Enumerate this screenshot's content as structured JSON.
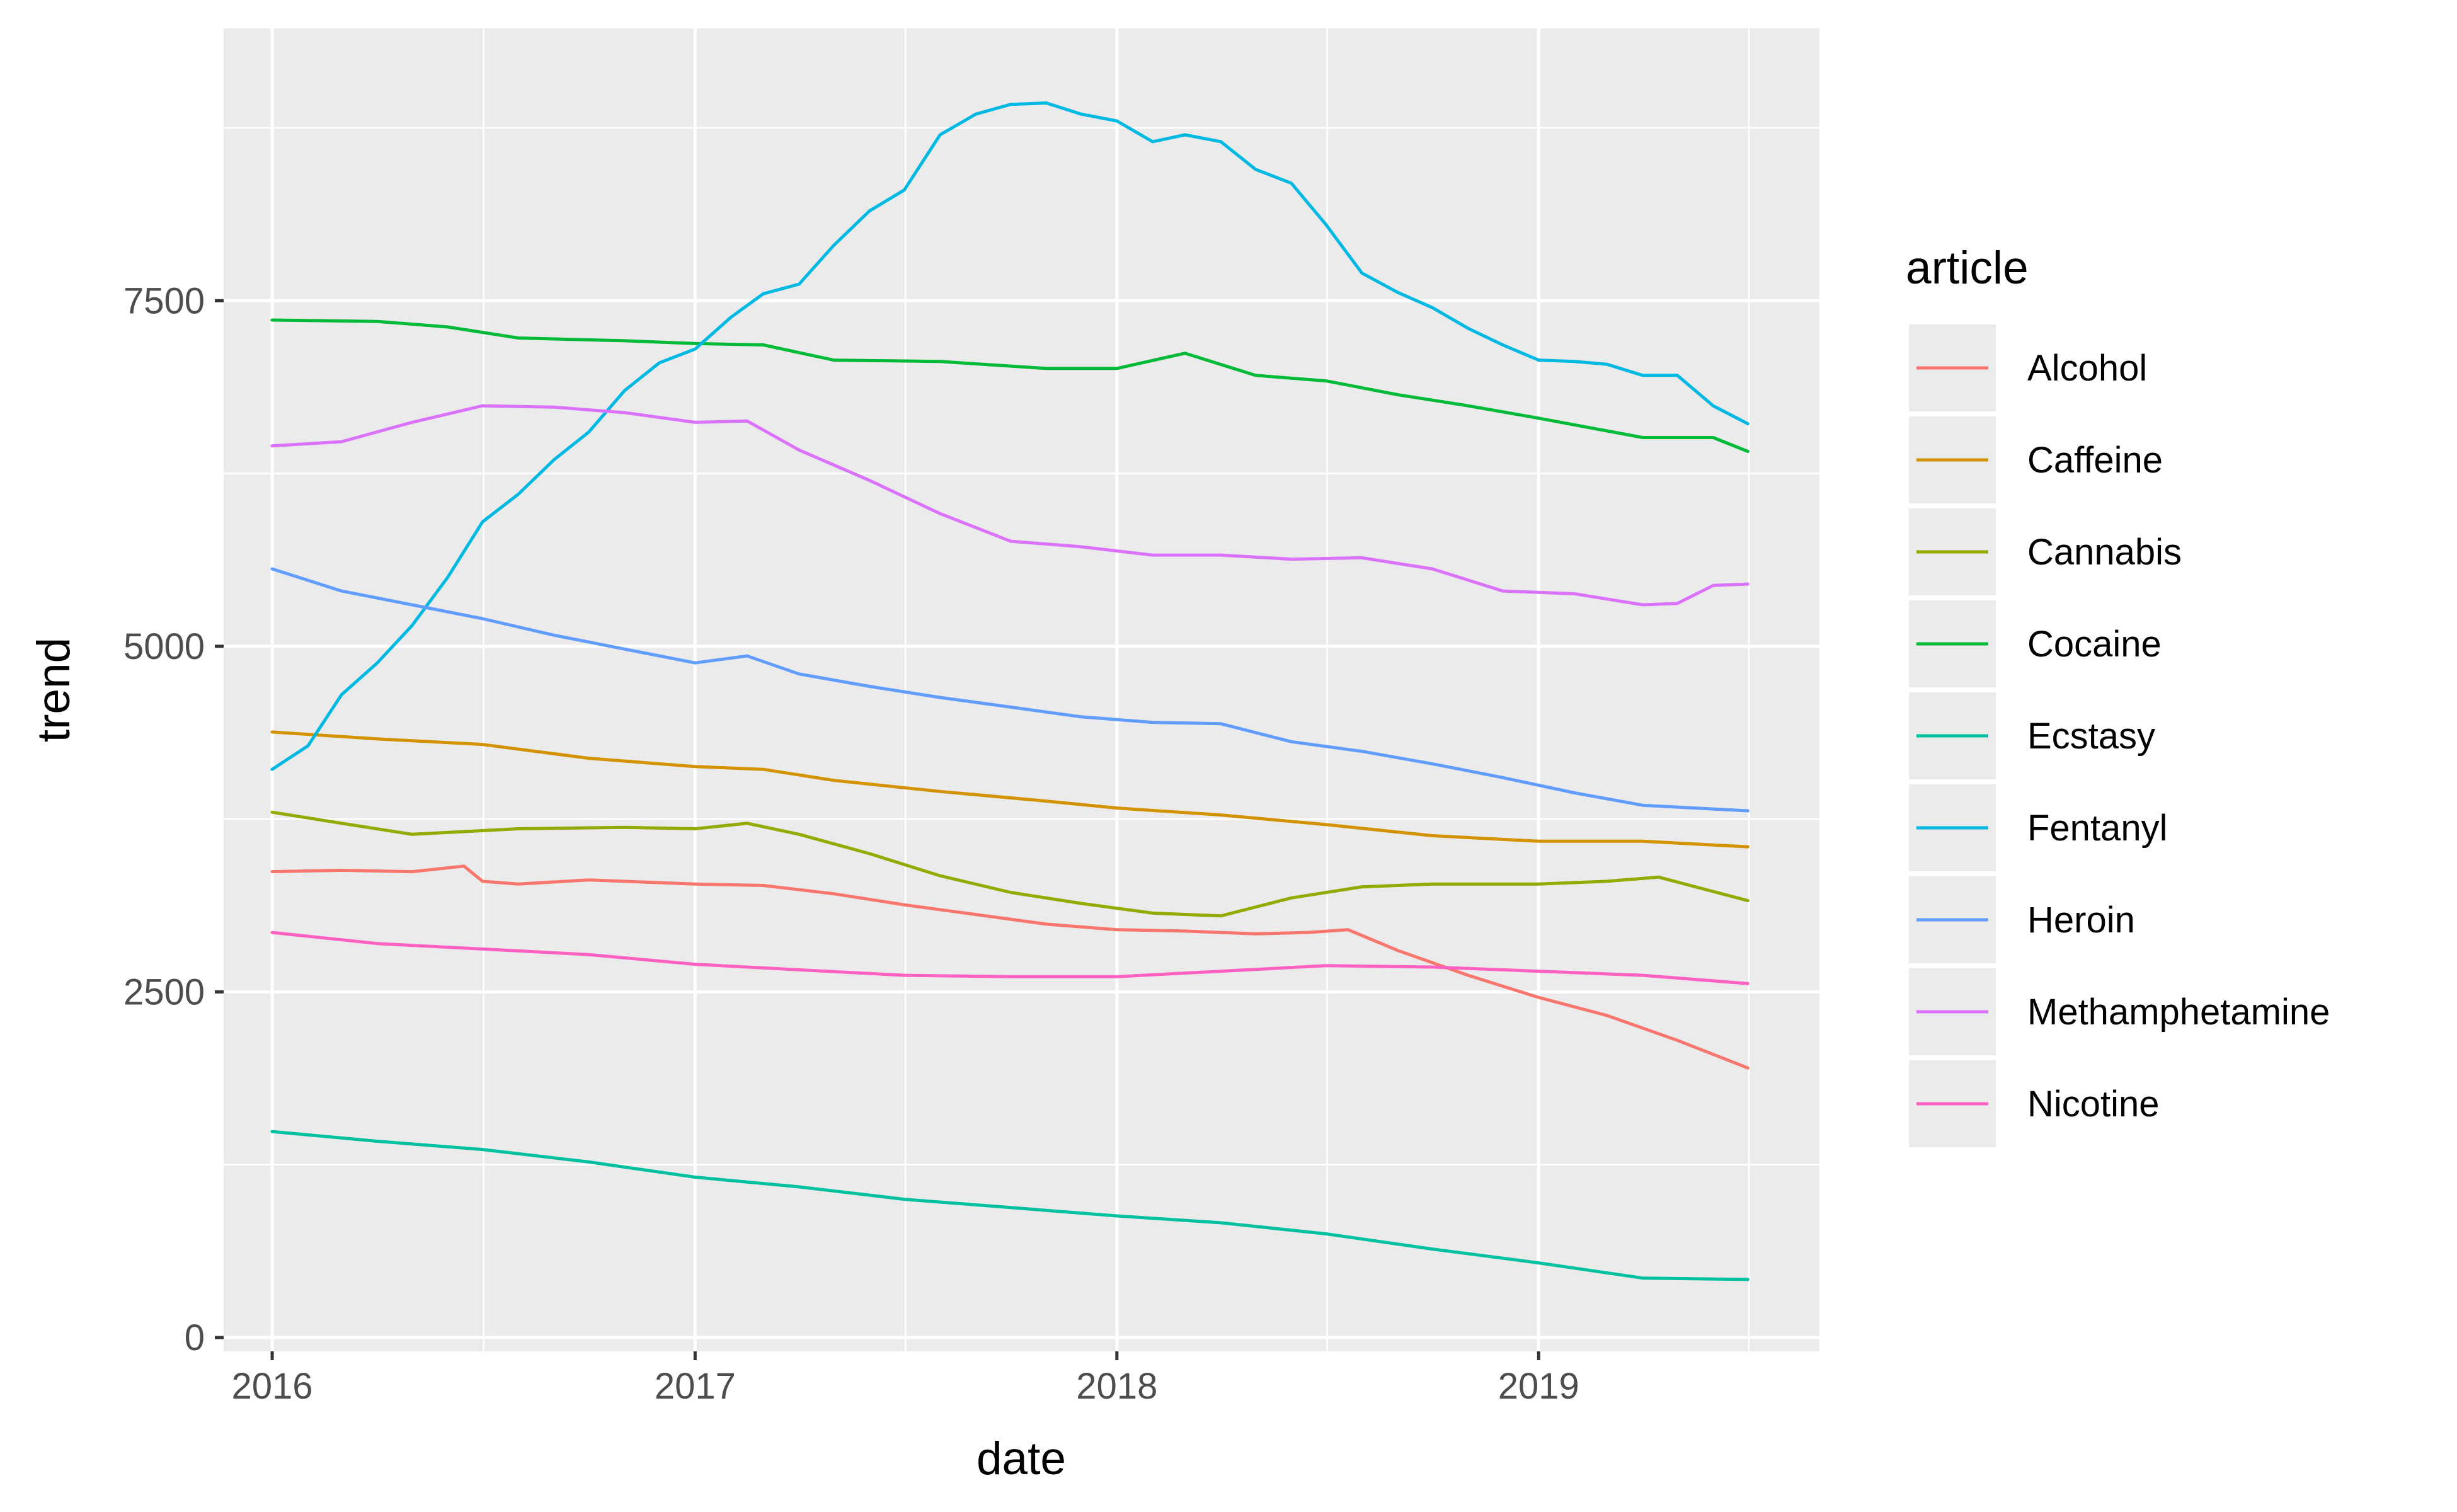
{
  "chart_data": {
    "type": "line",
    "xlabel": "date",
    "ylabel": "trend",
    "x_ticks": [
      "2016",
      "2017",
      "2018",
      "2019"
    ],
    "y_ticks": [
      0,
      2500,
      5000,
      7500
    ],
    "xlim": [
      "2015-11-20",
      "2019-09-01"
    ],
    "ylim": [
      -100,
      9470
    ],
    "grid": true,
    "legend_title": "article",
    "legend_position": "right",
    "series": [
      {
        "name": "Alcohol",
        "color": "#F8766D",
        "points": [
          [
            "2016-01-01",
            3370
          ],
          [
            "2016-03-01",
            3380
          ],
          [
            "2016-05-01",
            3370
          ],
          [
            "2016-06-15",
            3410
          ],
          [
            "2016-07-01",
            3300
          ],
          [
            "2016-08-01",
            3280
          ],
          [
            "2016-10-01",
            3310
          ],
          [
            "2017-01-01",
            3280
          ],
          [
            "2017-03-01",
            3270
          ],
          [
            "2017-05-01",
            3210
          ],
          [
            "2017-07-01",
            3130
          ],
          [
            "2017-09-01",
            3060
          ],
          [
            "2017-11-01",
            2990
          ],
          [
            "2018-01-01",
            2950
          ],
          [
            "2018-03-01",
            2940
          ],
          [
            "2018-05-01",
            2920
          ],
          [
            "2018-06-15",
            2930
          ],
          [
            "2018-07-20",
            2950
          ],
          [
            "2018-09-01",
            2800
          ],
          [
            "2018-11-01",
            2620
          ],
          [
            "2019-01-01",
            2460
          ],
          [
            "2019-03-01",
            2330
          ],
          [
            "2019-05-01",
            2150
          ],
          [
            "2019-07-01",
            1950
          ]
        ]
      },
      {
        "name": "Caffeine",
        "color": "#D39200",
        "points": [
          [
            "2016-01-01",
            4380
          ],
          [
            "2016-04-01",
            4330
          ],
          [
            "2016-07-01",
            4290
          ],
          [
            "2016-10-01",
            4190
          ],
          [
            "2017-01-01",
            4130
          ],
          [
            "2017-03-01",
            4110
          ],
          [
            "2017-05-01",
            4030
          ],
          [
            "2017-08-01",
            3950
          ],
          [
            "2017-11-01",
            3880
          ],
          [
            "2018-01-01",
            3830
          ],
          [
            "2018-04-01",
            3780
          ],
          [
            "2018-07-01",
            3710
          ],
          [
            "2018-10-01",
            3630
          ],
          [
            "2019-01-01",
            3590
          ],
          [
            "2019-04-01",
            3590
          ],
          [
            "2019-07-01",
            3550
          ]
        ]
      },
      {
        "name": "Cannabis",
        "color": "#93AA00",
        "points": [
          [
            "2016-01-01",
            3800
          ],
          [
            "2016-03-01",
            3720
          ],
          [
            "2016-05-01",
            3640
          ],
          [
            "2016-08-01",
            3680
          ],
          [
            "2016-11-01",
            3690
          ],
          [
            "2017-01-01",
            3680
          ],
          [
            "2017-02-15",
            3720
          ],
          [
            "2017-04-01",
            3640
          ],
          [
            "2017-06-01",
            3500
          ],
          [
            "2017-08-01",
            3340
          ],
          [
            "2017-10-01",
            3220
          ],
          [
            "2017-12-01",
            3140
          ],
          [
            "2018-02-01",
            3070
          ],
          [
            "2018-04-01",
            3050
          ],
          [
            "2018-06-01",
            3180
          ],
          [
            "2018-08-01",
            3260
          ],
          [
            "2018-10-01",
            3280
          ],
          [
            "2019-01-01",
            3280
          ],
          [
            "2019-03-01",
            3300
          ],
          [
            "2019-04-15",
            3330
          ],
          [
            "2019-07-01",
            3160
          ]
        ]
      },
      {
        "name": "Cocaine",
        "color": "#00BA38",
        "points": [
          [
            "2016-01-01",
            7360
          ],
          [
            "2016-04-01",
            7350
          ],
          [
            "2016-06-01",
            7310
          ],
          [
            "2016-08-01",
            7230
          ],
          [
            "2016-11-01",
            7210
          ],
          [
            "2017-01-01",
            7190
          ],
          [
            "2017-03-01",
            7180
          ],
          [
            "2017-05-01",
            7070
          ],
          [
            "2017-08-01",
            7060
          ],
          [
            "2017-11-01",
            7010
          ],
          [
            "2018-01-01",
            7010
          ],
          [
            "2018-03-01",
            7120
          ],
          [
            "2018-05-01",
            6960
          ],
          [
            "2018-07-01",
            6920
          ],
          [
            "2018-09-01",
            6820
          ],
          [
            "2018-11-01",
            6740
          ],
          [
            "2019-01-01",
            6650
          ],
          [
            "2019-04-01",
            6510
          ],
          [
            "2019-06-01",
            6510
          ],
          [
            "2019-07-01",
            6410
          ]
        ]
      },
      {
        "name": "Ecstasy",
        "color": "#00C19F",
        "points": [
          [
            "2016-01-01",
            1490
          ],
          [
            "2016-04-01",
            1420
          ],
          [
            "2016-07-01",
            1360
          ],
          [
            "2016-10-01",
            1270
          ],
          [
            "2017-01-01",
            1160
          ],
          [
            "2017-04-01",
            1090
          ],
          [
            "2017-07-01",
            1000
          ],
          [
            "2017-10-01",
            940
          ],
          [
            "2018-01-01",
            880
          ],
          [
            "2018-04-01",
            830
          ],
          [
            "2018-07-01",
            750
          ],
          [
            "2018-10-01",
            640
          ],
          [
            "2019-01-01",
            540
          ],
          [
            "2019-04-01",
            430
          ],
          [
            "2019-07-01",
            420
          ]
        ]
      },
      {
        "name": "Fentanyl",
        "color": "#00B9E3",
        "points": [
          [
            "2016-01-01",
            4110
          ],
          [
            "2016-02-01",
            4280
          ],
          [
            "2016-03-01",
            4650
          ],
          [
            "2016-04-01",
            4880
          ],
          [
            "2016-05-01",
            5150
          ],
          [
            "2016-06-01",
            5500
          ],
          [
            "2016-07-01",
            5900
          ],
          [
            "2016-08-01",
            6100
          ],
          [
            "2016-09-01",
            6350
          ],
          [
            "2016-10-01",
            6550
          ],
          [
            "2016-11-01",
            6850
          ],
          [
            "2016-12-01",
            7050
          ],
          [
            "2017-01-01",
            7150
          ],
          [
            "2017-02-01",
            7380
          ],
          [
            "2017-03-01",
            7550
          ],
          [
            "2017-04-01",
            7620
          ],
          [
            "2017-05-01",
            7900
          ],
          [
            "2017-06-01",
            8150
          ],
          [
            "2017-07-01",
            8300
          ],
          [
            "2017-08-01",
            8700
          ],
          [
            "2017-09-01",
            8850
          ],
          [
            "2017-10-01",
            8920
          ],
          [
            "2017-11-01",
            8930
          ],
          [
            "2017-12-01",
            8850
          ],
          [
            "2018-01-01",
            8800
          ],
          [
            "2018-02-01",
            8650
          ],
          [
            "2018-03-01",
            8700
          ],
          [
            "2018-04-01",
            8650
          ],
          [
            "2018-05-01",
            8450
          ],
          [
            "2018-06-01",
            8350
          ],
          [
            "2018-07-01",
            8050
          ],
          [
            "2018-08-01",
            7700
          ],
          [
            "2018-09-01",
            7560
          ],
          [
            "2018-10-01",
            7450
          ],
          [
            "2018-11-01",
            7300
          ],
          [
            "2018-12-01",
            7180
          ],
          [
            "2019-01-01",
            7070
          ],
          [
            "2019-02-01",
            7060
          ],
          [
            "2019-03-01",
            7040
          ],
          [
            "2019-04-01",
            6960
          ],
          [
            "2019-05-01",
            6960
          ],
          [
            "2019-06-01",
            6740
          ],
          [
            "2019-07-01",
            6610
          ]
        ]
      },
      {
        "name": "Heroin",
        "color": "#619CFF",
        "points": [
          [
            "2016-01-01",
            5560
          ],
          [
            "2016-03-01",
            5400
          ],
          [
            "2016-05-01",
            5300
          ],
          [
            "2016-07-01",
            5200
          ],
          [
            "2016-09-01",
            5080
          ],
          [
            "2016-11-01",
            4980
          ],
          [
            "2017-01-01",
            4880
          ],
          [
            "2017-02-15",
            4930
          ],
          [
            "2017-04-01",
            4800
          ],
          [
            "2017-06-01",
            4710
          ],
          [
            "2017-08-01",
            4630
          ],
          [
            "2017-10-01",
            4560
          ],
          [
            "2017-12-01",
            4490
          ],
          [
            "2018-02-01",
            4450
          ],
          [
            "2018-04-01",
            4440
          ],
          [
            "2018-06-01",
            4310
          ],
          [
            "2018-08-01",
            4240
          ],
          [
            "2018-10-01",
            4150
          ],
          [
            "2018-12-01",
            4050
          ],
          [
            "2019-02-01",
            3940
          ],
          [
            "2019-04-01",
            3850
          ],
          [
            "2019-07-01",
            3810
          ]
        ]
      },
      {
        "name": "Methamphetamine",
        "color": "#DB72FB",
        "points": [
          [
            "2016-01-01",
            6450
          ],
          [
            "2016-03-01",
            6480
          ],
          [
            "2016-05-01",
            6620
          ],
          [
            "2016-07-01",
            6740
          ],
          [
            "2016-09-01",
            6730
          ],
          [
            "2016-11-01",
            6690
          ],
          [
            "2017-01-01",
            6620
          ],
          [
            "2017-02-15",
            6630
          ],
          [
            "2017-04-01",
            6420
          ],
          [
            "2017-06-01",
            6200
          ],
          [
            "2017-08-01",
            5960
          ],
          [
            "2017-10-01",
            5760
          ],
          [
            "2017-12-01",
            5720
          ],
          [
            "2018-02-01",
            5660
          ],
          [
            "2018-04-01",
            5660
          ],
          [
            "2018-06-01",
            5630
          ],
          [
            "2018-08-01",
            5640
          ],
          [
            "2018-10-01",
            5560
          ],
          [
            "2018-12-01",
            5400
          ],
          [
            "2019-02-01",
            5380
          ],
          [
            "2019-04-01",
            5300
          ],
          [
            "2019-05-01",
            5310
          ],
          [
            "2019-06-01",
            5440
          ],
          [
            "2019-07-01",
            5450
          ]
        ]
      },
      {
        "name": "Nicotine",
        "color": "#FF61C3",
        "points": [
          [
            "2016-01-01",
            2930
          ],
          [
            "2016-04-01",
            2850
          ],
          [
            "2016-07-01",
            2810
          ],
          [
            "2016-10-01",
            2770
          ],
          [
            "2017-01-01",
            2700
          ],
          [
            "2017-04-01",
            2660
          ],
          [
            "2017-07-01",
            2620
          ],
          [
            "2017-10-01",
            2610
          ],
          [
            "2018-01-01",
            2610
          ],
          [
            "2018-04-01",
            2650
          ],
          [
            "2018-07-01",
            2690
          ],
          [
            "2018-10-01",
            2680
          ],
          [
            "2019-01-01",
            2650
          ],
          [
            "2019-04-01",
            2620
          ],
          [
            "2019-07-01",
            2560
          ]
        ]
      }
    ]
  }
}
